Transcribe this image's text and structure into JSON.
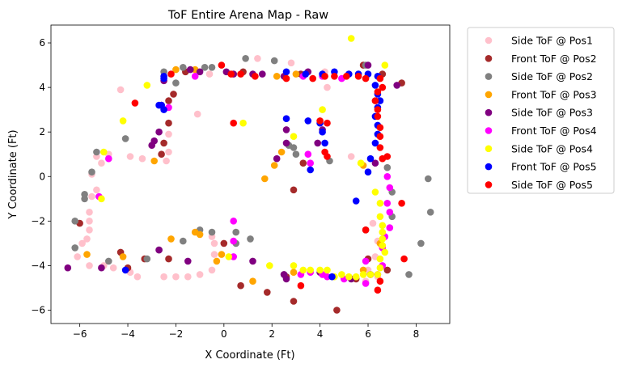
{
  "chart_data": {
    "type": "scatter",
    "title": "ToF Entire Arena Map - Raw",
    "xlabel": "X Coordinate (Ft)",
    "ylabel": "Y Coordinate (Ft)",
    "xlim": [
      -7.2,
      9.4
    ],
    "ylim": [
      -6.6,
      6.8
    ],
    "xticks": [
      -6,
      -4,
      -2,
      0,
      2,
      4,
      6,
      8
    ],
    "yticks": [
      -6,
      -4,
      -2,
      0,
      2,
      4,
      6
    ],
    "grid": false,
    "legend_position": "outside-right",
    "series": [
      {
        "name": "Side ToF @ Pos1",
        "color": "#ffc0cb",
        "points": [
          [
            1.4,
            5.3
          ],
          [
            2.8,
            5.1
          ],
          [
            -0.6,
            4.6
          ],
          [
            4.2,
            4.7
          ],
          [
            4.3,
            4.0
          ],
          [
            -4.3,
            3.9
          ],
          [
            -1.1,
            2.8
          ],
          [
            -2.3,
            1.9
          ],
          [
            -2.3,
            1.1
          ],
          [
            -2.4,
            0.7
          ],
          [
            -3.4,
            0.8
          ],
          [
            -3.9,
            0.9
          ],
          [
            -4.8,
            1.0
          ],
          [
            -5.3,
            0.9
          ],
          [
            -5.1,
            0.6
          ],
          [
            -5.5,
            0.1
          ],
          [
            -5.3,
            -0.6
          ],
          [
            -5.5,
            -0.9
          ],
          [
            -5.6,
            -1.6
          ],
          [
            -5.6,
            -2.0
          ],
          [
            -5.6,
            -2.4
          ],
          [
            -5.7,
            -2.8
          ],
          [
            -5.9,
            -3.0
          ],
          [
            -6.1,
            -3.6
          ],
          [
            -5.6,
            -4.0
          ],
          [
            -5.0,
            -4.0
          ],
          [
            -4.6,
            -4.1
          ],
          [
            -3.9,
            -4.3
          ],
          [
            -3.6,
            -4.5
          ],
          [
            -2.5,
            -4.5
          ],
          [
            -2.0,
            -4.5
          ],
          [
            -1.5,
            -4.5
          ],
          [
            -1.0,
            -4.4
          ],
          [
            -0.5,
            -4.2
          ],
          [
            -0.4,
            -3.5
          ],
          [
            -0.4,
            -3.0
          ],
          [
            -0.5,
            -2.7
          ],
          [
            5.3,
            0.9
          ],
          [
            6.2,
            -2.1
          ],
          [
            6.4,
            -2.9
          ],
          [
            6.3,
            -3.6
          ],
          [
            6.0,
            -4.2
          ],
          [
            5.9,
            -4.7
          ],
          [
            6.4,
            -4.5
          ]
        ]
      },
      {
        "name": "Front ToF @ Pos2",
        "color": "#a52a2a",
        "points": [
          [
            -2.1,
            3.7
          ],
          [
            -2.3,
            3.4
          ],
          [
            -2.3,
            2.4
          ],
          [
            -2.5,
            1.5
          ],
          [
            -2.6,
            1.0
          ],
          [
            3.3,
            0.6
          ],
          [
            2.9,
            -0.6
          ],
          [
            -6.0,
            -2.1
          ],
          [
            -4.3,
            -3.4
          ],
          [
            -4.0,
            -4.1
          ],
          [
            -3.3,
            -3.7
          ],
          [
            -2.3,
            -3.7
          ],
          [
            0.0,
            -3.0
          ],
          [
            0.7,
            -4.9
          ],
          [
            1.8,
            -5.2
          ],
          [
            2.9,
            -5.6
          ],
          [
            4.7,
            -6.0
          ],
          [
            2.6,
            -4.5
          ],
          [
            5.5,
            -4.6
          ],
          [
            6.0,
            -3.7
          ],
          [
            5.9,
            -2.4
          ],
          [
            6.8,
            -4.2
          ],
          [
            3.2,
            4.6
          ],
          [
            0.8,
            4.7
          ],
          [
            -1.6,
            4.7
          ],
          [
            6.6,
            4.6
          ],
          [
            7.4,
            4.2
          ],
          [
            5.8,
            5.0
          ]
        ]
      },
      {
        "name": "Side ToF @ Pos2",
        "color": "#808080",
        "points": [
          [
            -1.7,
            4.9
          ],
          [
            -0.8,
            4.9
          ],
          [
            -0.5,
            4.9
          ],
          [
            0.9,
            5.3
          ],
          [
            2.1,
            5.2
          ],
          [
            -2.5,
            4.7
          ],
          [
            -2.0,
            4.2
          ],
          [
            -4.1,
            1.7
          ],
          [
            -5.3,
            1.1
          ],
          [
            -5.5,
            0.2
          ],
          [
            -5.8,
            -0.8
          ],
          [
            -5.8,
            -1.0
          ],
          [
            -6.2,
            -2.0
          ],
          [
            -6.2,
            -3.2
          ],
          [
            -4.8,
            -3.8
          ],
          [
            -3.2,
            -3.7
          ],
          [
            -2.7,
            -3.3
          ],
          [
            -1.7,
            -2.9
          ],
          [
            -1.0,
            -2.4
          ],
          [
            -0.5,
            -2.5
          ],
          [
            0.5,
            -2.5
          ],
          [
            1.1,
            -2.8
          ],
          [
            0.5,
            -3.0
          ],
          [
            2.7,
            1.4
          ],
          [
            2.9,
            1.3
          ],
          [
            3.0,
            1.0
          ],
          [
            4.4,
            0.7
          ],
          [
            5.9,
            5.0
          ],
          [
            6.8,
            0.4
          ],
          [
            7.0,
            -0.7
          ],
          [
            7.0,
            -1.8
          ],
          [
            8.5,
            -0.1
          ],
          [
            8.6,
            -1.6
          ],
          [
            8.2,
            -3.0
          ],
          [
            7.7,
            -4.4
          ],
          [
            6.1,
            -4.4
          ],
          [
            2.5,
            -4.4
          ]
        ]
      },
      {
        "name": "Front ToF @ Pos3",
        "color": "#ffa500",
        "points": [
          [
            2.2,
            4.5
          ],
          [
            3.0,
            4.6
          ],
          [
            2.4,
            1.1
          ],
          [
            2.1,
            0.5
          ],
          [
            1.7,
            -0.1
          ],
          [
            -4.2,
            -3.6
          ],
          [
            -5.7,
            -3.5
          ],
          [
            -2.2,
            -2.8
          ],
          [
            -1.2,
            -2.5
          ],
          [
            -1.0,
            -2.6
          ],
          [
            -0.1,
            -3.5
          ],
          [
            -0.3,
            -3.8
          ],
          [
            1.2,
            -4.7
          ],
          [
            2.9,
            -4.3
          ],
          [
            5.8,
            -4.2
          ],
          [
            6.5,
            -3.0
          ],
          [
            -2.0,
            4.8
          ],
          [
            -1.2,
            4.8
          ],
          [
            5.8,
            0.5
          ],
          [
            -2.9,
            0.7
          ]
        ]
      },
      {
        "name": "Side ToF @ Pos3",
        "color": "#800080",
        "points": [
          [
            -1.4,
            4.8
          ],
          [
            -1.0,
            4.7
          ],
          [
            0.1,
            4.7
          ],
          [
            0.4,
            4.6
          ],
          [
            1.2,
            4.6
          ],
          [
            1.6,
            4.6
          ],
          [
            2.5,
            4.5
          ],
          [
            3.5,
            4.7
          ],
          [
            -2.5,
            4.3
          ],
          [
            -2.6,
            3.2
          ],
          [
            -2.7,
            2.0
          ],
          [
            -2.9,
            1.6
          ],
          [
            -3.0,
            1.4
          ],
          [
            2.6,
            2.1
          ],
          [
            2.6,
            1.5
          ],
          [
            2.2,
            0.8
          ],
          [
            4.1,
            2.1
          ],
          [
            3.9,
            1.5
          ],
          [
            -6.5,
            -4.1
          ],
          [
            -2.7,
            -3.3
          ],
          [
            -1.5,
            -3.8
          ],
          [
            1.2,
            -3.8
          ],
          [
            2.6,
            -4.6
          ],
          [
            2.5,
            -4.4
          ],
          [
            4.0,
            -4.3
          ],
          [
            5.3,
            -4.6
          ],
          [
            6.1,
            -4.4
          ],
          [
            6.0,
            5.0
          ],
          [
            7.2,
            4.1
          ],
          [
            6.3,
            0.6
          ],
          [
            -5.1,
            -4.1
          ]
        ]
      },
      {
        "name": "Front ToF @ Pos4",
        "color": "#ff00ff",
        "points": [
          [
            -1.2,
            4.5
          ],
          [
            -2.3,
            3.1
          ],
          [
            -4.8,
            0.8
          ],
          [
            -5.2,
            -0.9
          ],
          [
            3.3,
            4.5
          ],
          [
            4.1,
            4.5
          ],
          [
            4.9,
            4.4
          ],
          [
            3.5,
            1.0
          ],
          [
            3.6,
            0.6
          ],
          [
            0.4,
            -2.0
          ],
          [
            0.4,
            -2.9
          ],
          [
            0.4,
            -3.6
          ],
          [
            3.2,
            -4.4
          ],
          [
            3.6,
            -4.3
          ],
          [
            4.1,
            -4.4
          ],
          [
            4.3,
            -4.5
          ],
          [
            5.0,
            -4.6
          ],
          [
            5.9,
            -4.8
          ],
          [
            6.4,
            -4.4
          ],
          [
            6.6,
            -4.0
          ],
          [
            6.6,
            -3.2
          ],
          [
            6.7,
            -2.7
          ],
          [
            6.9,
            -2.3
          ],
          [
            6.9,
            -1.6
          ],
          [
            6.8,
            -1.2
          ],
          [
            6.9,
            -0.5
          ],
          [
            6.8,
            0.0
          ],
          [
            5.9,
            -3.8
          ]
        ]
      },
      {
        "name": "Side ToF @ Pos4",
        "color": "#ffff00",
        "points": [
          [
            5.3,
            6.2
          ],
          [
            -3.2,
            4.1
          ],
          [
            6.7,
            5.0
          ],
          [
            4.1,
            3.0
          ],
          [
            0.8,
            2.4
          ],
          [
            2.9,
            1.8
          ],
          [
            5.7,
            0.6
          ],
          [
            -5.0,
            1.1
          ],
          [
            -4.2,
            2.5
          ],
          [
            -5.1,
            -1.0
          ],
          [
            6.3,
            -0.7
          ],
          [
            6.5,
            -1.2
          ],
          [
            6.5,
            -1.8
          ],
          [
            6.6,
            -2.2
          ],
          [
            6.6,
            -2.5
          ],
          [
            6.6,
            -2.8
          ],
          [
            6.6,
            -3.1
          ],
          [
            6.7,
            -3.4
          ],
          [
            6.5,
            -3.7
          ],
          [
            6.5,
            -4.1
          ],
          [
            6.4,
            -4.4
          ],
          [
            6.1,
            -4.4
          ],
          [
            5.8,
            -4.4
          ],
          [
            5.5,
            -4.5
          ],
          [
            5.2,
            -4.5
          ],
          [
            4.9,
            -4.4
          ],
          [
            4.6,
            -4.5
          ],
          [
            4.3,
            -4.2
          ],
          [
            4.0,
            -4.2
          ],
          [
            3.6,
            -4.2
          ],
          [
            3.3,
            -4.2
          ],
          [
            2.9,
            -4.0
          ],
          [
            1.9,
            -4.0
          ],
          [
            0.2,
            -3.6
          ]
        ]
      },
      {
        "name": "Front ToF @ Pos5",
        "color": "#0000ff",
        "points": [
          [
            -2.5,
            4.5
          ],
          [
            -2.6,
            3.2
          ],
          [
            -2.7,
            3.2
          ],
          [
            -2.5,
            3.0
          ],
          [
            2.6,
            4.7
          ],
          [
            3.4,
            4.6
          ],
          [
            4.1,
            4.6
          ],
          [
            4.6,
            4.7
          ],
          [
            5.2,
            4.6
          ],
          [
            5.6,
            4.6
          ],
          [
            6.0,
            4.6
          ],
          [
            6.4,
            4.5
          ],
          [
            6.3,
            4.1
          ],
          [
            6.4,
            3.7
          ],
          [
            6.5,
            3.4
          ],
          [
            6.4,
            3.1
          ],
          [
            6.3,
            2.7
          ],
          [
            6.4,
            2.3
          ],
          [
            6.4,
            1.9
          ],
          [
            6.3,
            1.5
          ],
          [
            6.1,
            0.8
          ],
          [
            6.0,
            0.2
          ],
          [
            2.6,
            2.6
          ],
          [
            3.5,
            2.5
          ],
          [
            4.0,
            2.4
          ],
          [
            4.1,
            2.0
          ],
          [
            4.2,
            1.5
          ],
          [
            3.6,
            0.3
          ],
          [
            5.5,
            -1.1
          ],
          [
            4.5,
            -4.5
          ],
          [
            -4.1,
            -4.2
          ],
          [
            -2.5,
            4.4
          ]
        ]
      },
      {
        "name": "Side ToF @ Pos5",
        "color": "#ff0000",
        "points": [
          [
            -0.1,
            5.0
          ],
          [
            -2.2,
            4.6
          ],
          [
            0.3,
            4.6
          ],
          [
            0.7,
            4.6
          ],
          [
            1.3,
            4.5
          ],
          [
            2.6,
            4.4
          ],
          [
            3.7,
            4.4
          ],
          [
            4.2,
            4.5
          ],
          [
            4.6,
            4.5
          ],
          [
            5.1,
            4.5
          ],
          [
            5.6,
            4.5
          ],
          [
            5.9,
            4.4
          ],
          [
            6.5,
            4.4
          ],
          [
            6.6,
            4.0
          ],
          [
            6.4,
            3.8
          ],
          [
            6.3,
            3.4
          ],
          [
            6.4,
            3.0
          ],
          [
            6.4,
            2.7
          ],
          [
            6.5,
            2.2
          ],
          [
            6.5,
            1.8
          ],
          [
            6.5,
            1.3
          ],
          [
            6.6,
            0.8
          ],
          [
            6.8,
            0.9
          ],
          [
            0.4,
            2.4
          ],
          [
            4.0,
            2.5
          ],
          [
            4.3,
            2.4
          ],
          [
            4.2,
            1.1
          ],
          [
            4.3,
            0.9
          ],
          [
            -3.7,
            3.3
          ],
          [
            3.2,
            -4.9
          ],
          [
            5.9,
            -2.4
          ],
          [
            6.5,
            -4.7
          ],
          [
            6.4,
            -5.1
          ],
          [
            7.4,
            -1.2
          ],
          [
            7.5,
            -3.7
          ]
        ]
      }
    ]
  }
}
